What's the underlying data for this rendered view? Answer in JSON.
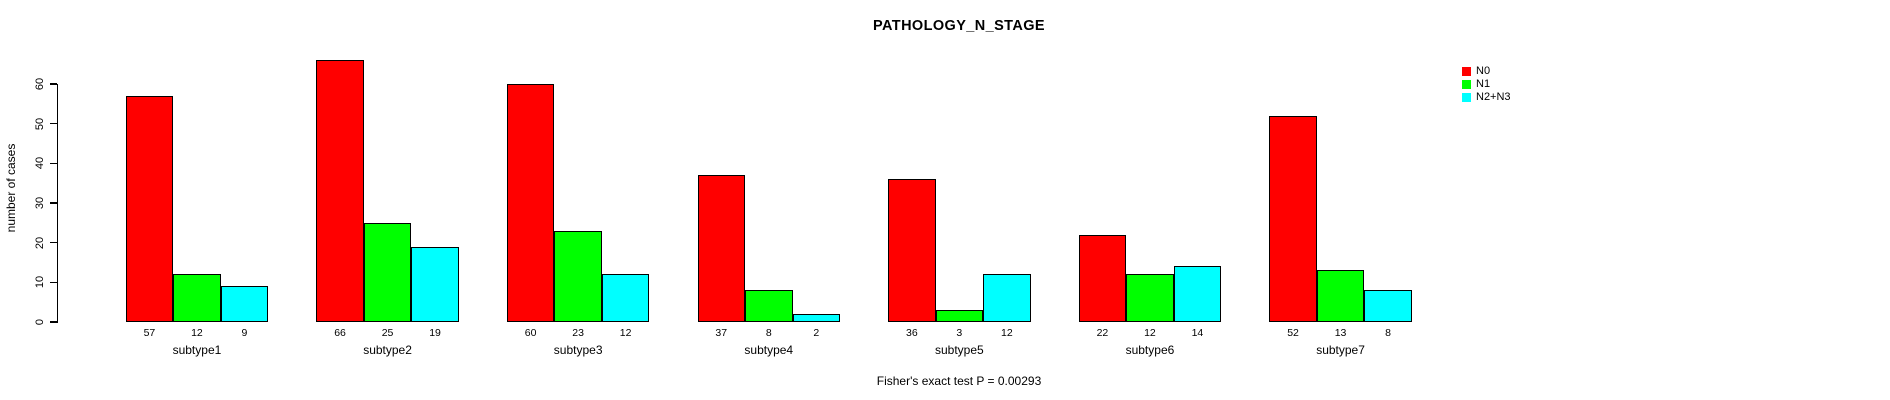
{
  "chart_data": {
    "type": "bar",
    "title": "PATHOLOGY_N_STAGE",
    "subtitle": "Fisher's exact test P = 0.00293",
    "ylabel": "number of cases",
    "xlabel": "",
    "categories": [
      "subtype1",
      "subtype2",
      "subtype3",
      "subtype4",
      "subtype5",
      "subtype6",
      "subtype7"
    ],
    "series": [
      {
        "name": "N0",
        "color": "#ff0000",
        "values": [
          57,
          66,
          60,
          37,
          36,
          22,
          52
        ]
      },
      {
        "name": "N1",
        "color": "#00ff00",
        "values": [
          12,
          25,
          23,
          8,
          3,
          12,
          13
        ]
      },
      {
        "name": "N2+N3",
        "color": "#00ffff",
        "values": [
          9,
          19,
          12,
          2,
          12,
          14,
          8
        ]
      }
    ],
    "bar_value_labels_shown": true,
    "yticks": [
      0,
      10,
      20,
      30,
      40,
      50,
      60
    ],
    "ylim": [
      0,
      60
    ],
    "grid": false,
    "legend_position": "right",
    "bar_border_color": "#000000",
    "background_color": "#ffffff"
  }
}
